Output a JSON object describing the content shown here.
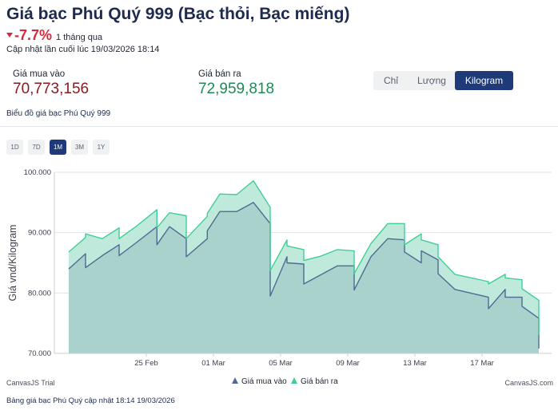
{
  "header": {
    "title": "Giá bạc Phú Quý 999 (Bạc thỏi, Bạc miếng)",
    "change": "-7.7%",
    "change_period": "1 tháng qua",
    "updated": "Cập nhật lần cuối lúc 19/03/2026 18:14"
  },
  "prices": {
    "buy_label": "Giá mua vào",
    "buy_value": "70,773,156",
    "sell_label": "Giá bán ra",
    "sell_value": "72,959,818"
  },
  "units": {
    "items": [
      "Chỉ",
      "Lượng",
      "Kilogram"
    ],
    "active": "Kilogram"
  },
  "chart_subtitle": "Biểu đồ giá bạc Phú Quý 999",
  "ranges": {
    "items": [
      "1D",
      "7D",
      "1M",
      "3M",
      "1Y"
    ],
    "active": "1M"
  },
  "chart_credit": "CanvasJS Trial",
  "chart_site": "CanvasJS.com",
  "footer": "Bảng giá bạc Phú Quý cập nhật 18:14 19/03/2026",
  "colors": {
    "buy_line": "#4f6a93",
    "buy_fill": "#a9d2cc",
    "sell_line": "#3fcf94",
    "sell_fill": "#bfeadb",
    "accent": "#1e3a78",
    "down": "#d8293a"
  },
  "chart_data": {
    "type": "area",
    "ylabel": "Giá vnd/Kilogram",
    "xlabel": "",
    "ylim": [
      70000000,
      100000000
    ],
    "y_ticks": [
      "70.000",
      "80.000",
      "90.000",
      "100.000"
    ],
    "y_tick_values": [
      70000000,
      80000000,
      90000000,
      100000000
    ],
    "x_ticks": [
      "25 Feb",
      "01 Mar",
      "05 Mar",
      "09 Mar",
      "13 Mar",
      "17 Mar"
    ],
    "x_tick_dates": [
      "2026-02-25",
      "2026-03-01",
      "2026-03-05",
      "2026-03-09",
      "2026-03-13",
      "2026-03-17"
    ],
    "grid": true,
    "legend_position": "bottom",
    "series": [
      {
        "name": "Giá mua vào",
        "points": [
          [
            "2026-02-20T00:00",
            84000000
          ],
          [
            "2026-02-21T00:00",
            86500000
          ],
          [
            "2026-02-21T00:00",
            84200000
          ],
          [
            "2026-02-22T00:00",
            86200000
          ],
          [
            "2026-02-23T00:00",
            88000000
          ],
          [
            "2026-02-23T00:00",
            86200000
          ],
          [
            "2026-02-24T00:00",
            88300000
          ],
          [
            "2026-02-25T06:00",
            91000000
          ],
          [
            "2026-02-25T06:00",
            88000000
          ],
          [
            "2026-02-26T00:00",
            91000000
          ],
          [
            "2026-02-27T00:00",
            89000000
          ],
          [
            "2026-02-27T00:00",
            86000000
          ],
          [
            "2026-02-28T06:00",
            89000000
          ],
          [
            "2026-02-28T06:00",
            90300000
          ],
          [
            "2026-03-01T00:00",
            93500000
          ],
          [
            "2026-03-02T00:00",
            93500000
          ],
          [
            "2026-03-03T00:00",
            95000000
          ],
          [
            "2026-03-04T00:00",
            91500000
          ],
          [
            "2026-03-04T00:00",
            79500000
          ],
          [
            "2026-03-05T00:00",
            86000000
          ],
          [
            "2026-03-05T00:00",
            85000000
          ],
          [
            "2026-03-06T00:00",
            84800000
          ],
          [
            "2026-03-06T00:00",
            81500000
          ],
          [
            "2026-03-07T00:00",
            83000000
          ],
          [
            "2026-03-08T00:00",
            84500000
          ],
          [
            "2026-03-09T00:00",
            84500000
          ],
          [
            "2026-03-09T00:00",
            80500000
          ],
          [
            "2026-03-10T00:00",
            86000000
          ],
          [
            "2026-03-11T00:00",
            89000000
          ],
          [
            "2026-03-12T00:00",
            88800000
          ],
          [
            "2026-03-12T00:00",
            86800000
          ],
          [
            "2026-03-13T00:00",
            85000000
          ],
          [
            "2026-03-13T00:00",
            87000000
          ],
          [
            "2026-03-14T00:00",
            85500000
          ],
          [
            "2026-03-14T00:00",
            83200000
          ],
          [
            "2026-03-15T00:00",
            80600000
          ],
          [
            "2026-03-17T00:00",
            79300000
          ],
          [
            "2026-03-17T00:00",
            77400000
          ],
          [
            "2026-03-18T00:00",
            80600000
          ],
          [
            "2026-03-18T00:00",
            79300000
          ],
          [
            "2026-03-19T00:00",
            79300000
          ],
          [
            "2026-03-19T00:00",
            77800000
          ],
          [
            "2026-03-20T00:00",
            75800000
          ],
          [
            "2026-03-20T00:00",
            70800000
          ]
        ]
      },
      {
        "name": "Giá bán ra",
        "points": [
          [
            "2026-02-20T00:00",
            86800000
          ],
          [
            "2026-02-21T00:00",
            89200000
          ],
          [
            "2026-02-21T00:00",
            89800000
          ],
          [
            "2026-02-22T00:00",
            89000000
          ],
          [
            "2026-02-23T00:00",
            90800000
          ],
          [
            "2026-02-23T00:00",
            89000000
          ],
          [
            "2026-02-24T00:00",
            91000000
          ],
          [
            "2026-02-25T06:00",
            93800000
          ],
          [
            "2026-02-25T06:00",
            90800000
          ],
          [
            "2026-02-26T00:00",
            93300000
          ],
          [
            "2026-02-27T00:00",
            92800000
          ],
          [
            "2026-02-27T00:00",
            89000000
          ],
          [
            "2026-02-28T06:00",
            92700000
          ],
          [
            "2026-02-28T06:00",
            93200000
          ],
          [
            "2026-03-01T00:00",
            96400000
          ],
          [
            "2026-03-02T00:00",
            96300000
          ],
          [
            "2026-03-03T00:00",
            98600000
          ],
          [
            "2026-03-04T00:00",
            94200000
          ],
          [
            "2026-03-04T00:00",
            83700000
          ],
          [
            "2026-03-05T00:00",
            88800000
          ],
          [
            "2026-03-05T00:00",
            87800000
          ],
          [
            "2026-03-06T00:00",
            87200000
          ],
          [
            "2026-03-06T00:00",
            85400000
          ],
          [
            "2026-03-07T00:00",
            86100000
          ],
          [
            "2026-03-08T00:00",
            87200000
          ],
          [
            "2026-03-09T00:00",
            87000000
          ],
          [
            "2026-03-09T00:00",
            83200000
          ],
          [
            "2026-03-10T00:00",
            88200000
          ],
          [
            "2026-03-11T00:00",
            91500000
          ],
          [
            "2026-03-12T00:00",
            91500000
          ],
          [
            "2026-03-12T00:00",
            88000000
          ],
          [
            "2026-03-13T00:00",
            89800000
          ],
          [
            "2026-03-13T00:00",
            88800000
          ],
          [
            "2026-03-14T00:00",
            88000000
          ],
          [
            "2026-03-14T00:00",
            86000000
          ],
          [
            "2026-03-15T00:00",
            83100000
          ],
          [
            "2026-03-17T00:00",
            81900000
          ],
          [
            "2026-03-17T00:00",
            81500000
          ],
          [
            "2026-03-18T00:00",
            83100000
          ],
          [
            "2026-03-18T00:00",
            82500000
          ],
          [
            "2026-03-19T00:00",
            82200000
          ],
          [
            "2026-03-19T00:00",
            80700000
          ],
          [
            "2026-03-20T00:00",
            78800000
          ],
          [
            "2026-03-20T00:00",
            73000000
          ]
        ]
      }
    ]
  }
}
